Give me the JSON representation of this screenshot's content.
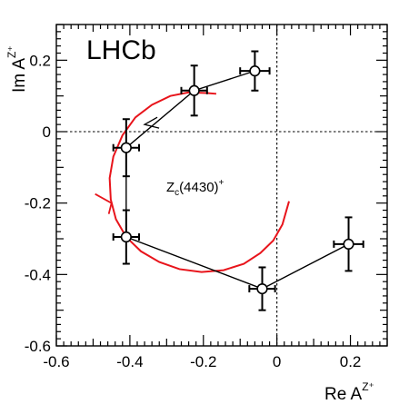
{
  "chart_data": {
    "type": "scatter",
    "experiment_label": "LHCb",
    "xlabel": {
      "text": "Re A",
      "sup": "Z⁺"
    },
    "ylabel": {
      "text": "Im A",
      "sup": "Z⁺"
    },
    "xlim": [
      -0.6,
      0.3
    ],
    "ylim": [
      -0.6,
      0.3
    ],
    "x_ticks": [
      -0.6,
      -0.4,
      -0.2,
      0,
      0.2
    ],
    "x_tick_labels": [
      "-0.6",
      "-0.4",
      "-0.2",
      "0",
      "0.2"
    ],
    "y_ticks": [
      -0.6,
      -0.4,
      -0.2,
      0,
      0.2
    ],
    "y_tick_labels": [
      "-0.6",
      "-0.4",
      "-0.2",
      "0",
      "0.2"
    ],
    "annotation": {
      "text": "Z",
      "sub": "c",
      "main": "(4430)",
      "sup": "+"
    },
    "points": [
      {
        "x": -0.04,
        "y": -0.44,
        "xerr": 0.035,
        "yerr": 0.06
      },
      {
        "x": 0.195,
        "y": -0.315,
        "xerr": 0.04,
        "yerr": 0.075
      },
      {
        "x": -0.41,
        "y": -0.295,
        "xerr": 0.035,
        "yerr": 0.075
      },
      {
        "x": -0.41,
        "y": -0.045,
        "xerr": 0.035,
        "yerr": 0.08
      },
      {
        "x": -0.225,
        "y": 0.115,
        "xerr": 0.035,
        "yerr": 0.07
      },
      {
        "x": -0.06,
        "y": 0.17,
        "xerr": 0.04,
        "yerr": 0.055
      }
    ],
    "connect_order": [
      1,
      0,
      2,
      3,
      4,
      5
    ],
    "arrows": [
      {
        "x": -0.36,
        "y": 0.02,
        "dir": "outward-left"
      }
    ],
    "model_curve": {
      "color": "#e8141b",
      "points": [
        [
          0.033,
          -0.195
        ],
        [
          0.015,
          -0.26
        ],
        [
          -0.01,
          -0.305
        ],
        [
          -0.045,
          -0.34
        ],
        [
          -0.09,
          -0.37
        ],
        [
          -0.145,
          -0.388
        ],
        [
          -0.205,
          -0.393
        ],
        [
          -0.265,
          -0.385
        ],
        [
          -0.32,
          -0.365
        ],
        [
          -0.37,
          -0.335
        ],
        [
          -0.41,
          -0.295
        ],
        [
          -0.438,
          -0.245
        ],
        [
          -0.452,
          -0.19
        ],
        [
          -0.455,
          -0.13
        ],
        [
          -0.445,
          -0.07
        ],
        [
          -0.42,
          -0.01
        ],
        [
          -0.385,
          0.04
        ],
        [
          -0.34,
          0.075
        ],
        [
          -0.29,
          0.1
        ],
        [
          -0.24,
          0.11
        ],
        [
          -0.19,
          0.108
        ],
        [
          -0.165,
          0.106
        ]
      ],
      "arrow_at": {
        "x": -0.45,
        "y": -0.2
      }
    }
  }
}
